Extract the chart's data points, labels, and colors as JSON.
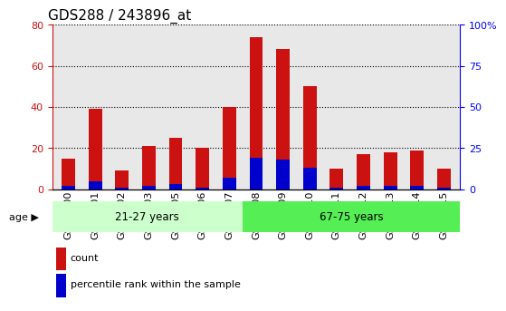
{
  "title": "GDS288 / 243896_at",
  "samples": [
    "GSM5300",
    "GSM5301",
    "GSM5302",
    "GSM5303",
    "GSM5305",
    "GSM5306",
    "GSM5307",
    "GSM5308",
    "GSM5309",
    "GSM5310",
    "GSM5311",
    "GSM5312",
    "GSM5313",
    "GSM5314",
    "GSM5315"
  ],
  "count_values": [
    15,
    39,
    9,
    21,
    25,
    20,
    40,
    74,
    68,
    50,
    10,
    17,
    18,
    19,
    10
  ],
  "percentile_values": [
    2,
    5,
    1,
    2,
    3,
    1,
    7,
    19,
    18,
    13,
    1,
    2,
    2,
    2,
    1
  ],
  "ylim_left": [
    0,
    80
  ],
  "ylim_right": [
    0,
    100
  ],
  "yticks_left": [
    0,
    20,
    40,
    60,
    80
  ],
  "ytick_labels_left": [
    "0",
    "20",
    "40",
    "60",
    "80"
  ],
  "yticks_right": [
    0,
    25,
    50,
    75,
    100
  ],
  "ytick_labels_right": [
    "0",
    "25",
    "50",
    "75",
    "100%"
  ],
  "group1_label": "21-27 years",
  "group2_label": "67-75 years",
  "group1_count": 7,
  "group2_count": 8,
  "age_label": "age",
  "bar_color_count": "#cc1111",
  "bar_color_pct": "#0000cc",
  "legend_count": "count",
  "legend_pct": "percentile rank within the sample",
  "group1_bg": "#ccffcc",
  "group2_bg": "#55ee55",
  "bar_width": 0.5,
  "title_fontsize": 11,
  "tick_fontsize": 8,
  "label_fontsize": 9,
  "plot_bg": "#e8e8e8"
}
